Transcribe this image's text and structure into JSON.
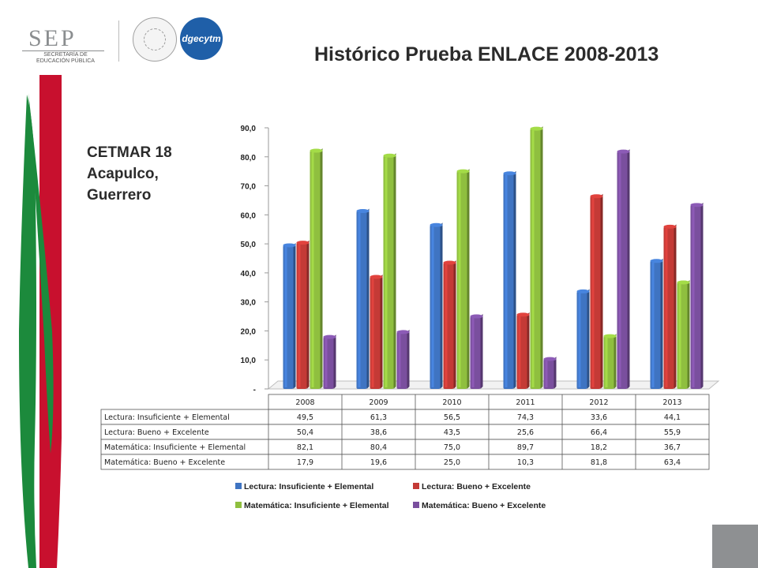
{
  "header": {
    "sep_logo": "SEP",
    "sep_sub": "SECRETARÍA DE EDUCACIÓN PÚBLICA",
    "dgecytm_logo": "dgecytm",
    "title": "Histórico Prueba ENLACE 2008-2013"
  },
  "school": {
    "line1": "CETMAR 18",
    "line2": "Acapulco,",
    "line3": "Guerrero"
  },
  "colors": {
    "green_stripe": "#1c8a3c",
    "red_stripe": "#c8102e",
    "corner": "#8e9092"
  },
  "chart_data": {
    "type": "bar",
    "title": "",
    "xlabel": "",
    "ylabel": "",
    "ylim": [
      0,
      90
    ],
    "ytick_labels": [
      "-",
      "10,0",
      "20,0",
      "30,0",
      "40,0",
      "50,0",
      "60,0",
      "70,0",
      "80,0",
      "90,0"
    ],
    "categories": [
      "2008",
      "2009",
      "2010",
      "2011",
      "2012",
      "2013"
    ],
    "series": [
      {
        "name": "Lectura: Insuficiente + Elemental",
        "color": "#3f74c2",
        "values": [
          49.5,
          61.3,
          56.5,
          74.3,
          33.6,
          44.1
        ],
        "labels": [
          "49,5",
          "61,3",
          "56,5",
          "74,3",
          "33,6",
          "44,1"
        ]
      },
      {
        "name": "Lectura: Bueno + Excelente",
        "color": "#c43a36",
        "values": [
          50.4,
          38.6,
          43.5,
          25.6,
          66.4,
          55.9
        ],
        "labels": [
          "50,4",
          "38,6",
          "43,5",
          "25,6",
          "66,4",
          "55,9"
        ]
      },
      {
        "name": "Matemática: Insuficiente + Elemental",
        "color": "#8fbf3f",
        "values": [
          82.1,
          80.4,
          75.0,
          89.7,
          18.2,
          36.7
        ],
        "labels": [
          "82,1",
          "80,4",
          "75,0",
          "89,7",
          "18,2",
          "36,7"
        ]
      },
      {
        "name": "Matemática: Bueno + Excelente",
        "color": "#7a4f9e",
        "values": [
          17.9,
          19.6,
          25.0,
          10.3,
          81.8,
          63.4
        ],
        "labels": [
          "17,9",
          "19,6",
          "25,0",
          "10,3",
          "81,8",
          "63,4"
        ]
      }
    ],
    "legend_position": "bottom",
    "grid": false
  }
}
